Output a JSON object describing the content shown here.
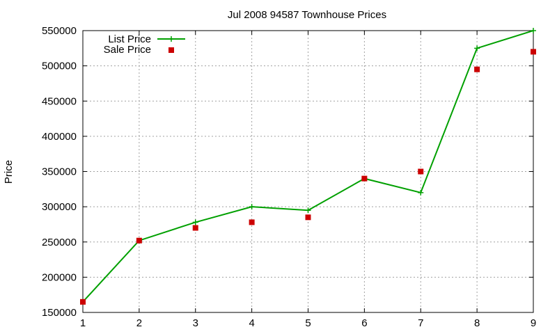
{
  "chart_data": {
    "type": "line",
    "title": "Jul 2008 94587 Townhouse Prices",
    "xlabel": "",
    "ylabel": "Price",
    "x": [
      1,
      2,
      3,
      4,
      5,
      6,
      7,
      8,
      9
    ],
    "xlim": [
      1,
      9
    ],
    "ylim": [
      150000,
      550000
    ],
    "xticks": [
      "1",
      "2",
      "3",
      "4",
      "5",
      "6",
      "7",
      "8",
      "9"
    ],
    "yticks": [
      "150000",
      "200000",
      "250000",
      "300000",
      "350000",
      "400000",
      "450000",
      "500000",
      "550000"
    ],
    "ytick_values": [
      150000,
      200000,
      250000,
      300000,
      350000,
      400000,
      450000,
      500000,
      550000
    ],
    "grid": true,
    "legend_position": "top-left",
    "series": [
      {
        "name": "List Price",
        "style": "lines+points",
        "marker": "plus",
        "color": "#00a000",
        "values": [
          165000,
          252000,
          278000,
          300000,
          295000,
          340000,
          320000,
          525000,
          550000
        ]
      },
      {
        "name": "Sale Price",
        "style": "points",
        "marker": "square",
        "color": "#cc0000",
        "values": [
          165000,
          252000,
          270000,
          278000,
          285000,
          340000,
          350000,
          495000,
          520000
        ]
      }
    ]
  }
}
